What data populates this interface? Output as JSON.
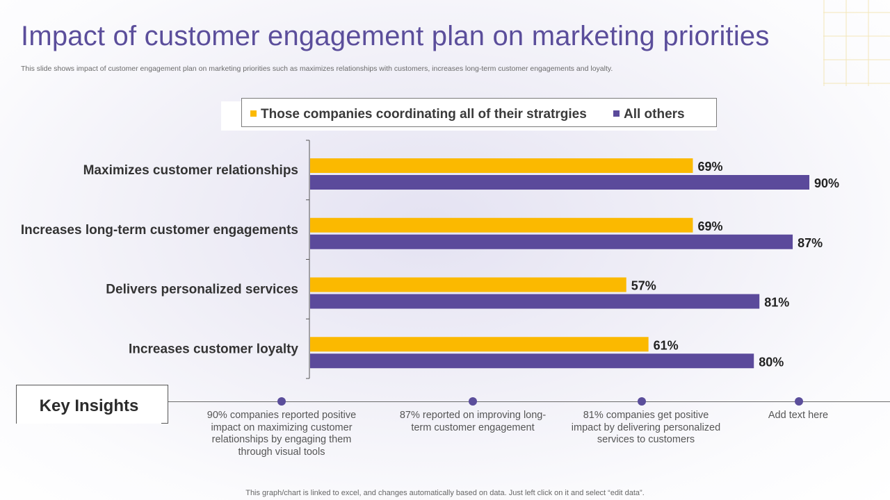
{
  "slide": {
    "title": "Impact of customer engagement plan on marketing priorities",
    "subtitle": "This slide shows impact of customer engagement plan on marketing priorities such as maximizes relationships with customers, increases long-term customer engagements and loyalty.",
    "footnote": "This graph/chart is linked to excel,  and changes automatically based on data. Just left click on it and select “edit data”."
  },
  "colors": {
    "accent": "#5b4e9b",
    "series_a": "#fbb900",
    "series_b": "#5b4a9b"
  },
  "chart_data": {
    "type": "bar",
    "orientation": "horizontal",
    "title": "",
    "xlabel": "",
    "ylabel": "",
    "xlim": [
      0,
      100
    ],
    "grid": false,
    "legend": "top",
    "categories": [
      "Maximizes customer relationships",
      "Increases long-term customer engagements",
      "Delivers personalized services",
      "Increases customer loyalty"
    ],
    "series": [
      {
        "name": "Those companies coordinating all of their stratrgies",
        "values": [
          69,
          69,
          57,
          61
        ],
        "labels": [
          "69%",
          "69%",
          "57%",
          "61%"
        ]
      },
      {
        "name": "All others",
        "values": [
          90,
          87,
          81,
          80
        ],
        "labels": [
          "90%",
          "87%",
          "81%",
          "80%"
        ]
      }
    ]
  },
  "key_insights": {
    "label": "Key Insights",
    "items": [
      "90% companies reported positive impact on maximizing customer relationships by engaging them through visual tools",
      "87% reported on improving long-term customer engagement",
      "81% companies get positive impact by delivering personalized services to customers",
      "Add text here"
    ]
  }
}
